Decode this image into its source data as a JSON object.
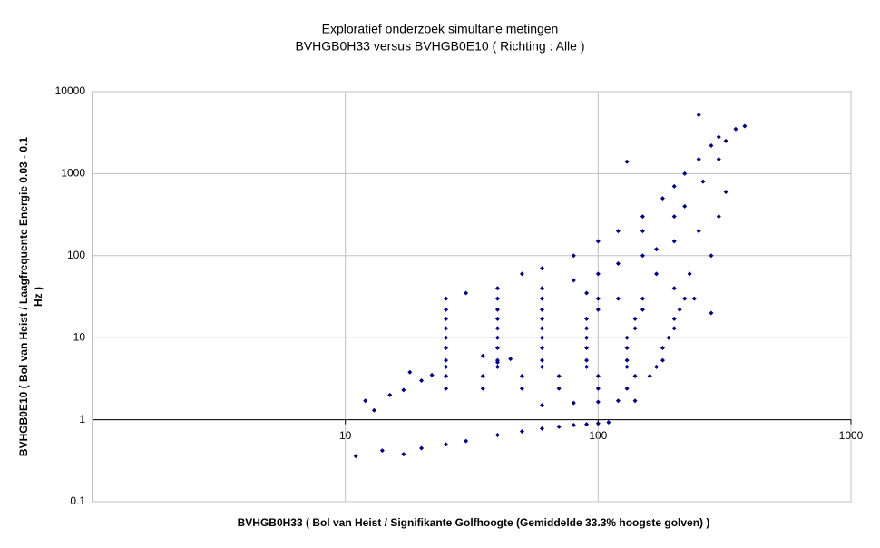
{
  "chart_data": {
    "type": "scatter",
    "title": [
      "Exploratief onderzoek simultane metingen",
      "BVHGB0H33 versus BVHGB0E10 ( Richting : Alle )"
    ],
    "xlabel": "BVHGB0H33 ( Bol van Heist / Signifikante Golfhoogte (Gemiddelde 33.3% hoogste golven) )",
    "ylabel": [
      "BVHGB0E10 ( Bol van Heist / Laagfrequente Energie 0.03 - 0.1",
      "Hz )"
    ],
    "xscale": "log",
    "yscale": "log",
    "grid": true,
    "color": "#000080",
    "xlim": [
      1,
      1000
    ],
    "xticks": [
      10,
      100,
      1000
    ],
    "ylim": [
      0.1,
      10000
    ],
    "yticks": [
      0.1,
      1,
      10,
      100,
      1000,
      10000
    ],
    "x": [
      11,
      14,
      17,
      20,
      25,
      30,
      40,
      50,
      60,
      70,
      80,
      90,
      100,
      110,
      12,
      13,
      15,
      17,
      20,
      22,
      18,
      60,
      80,
      100,
      120,
      140,
      25,
      35,
      50,
      70,
      100,
      130,
      25,
      35,
      50,
      70,
      100,
      140,
      160,
      25,
      40,
      60,
      90,
      130,
      170,
      25,
      40,
      60,
      90,
      130,
      180,
      25,
      40,
      60,
      90,
      130,
      180,
      25,
      40,
      60,
      90,
      130,
      190,
      25,
      40,
      60,
      90,
      140,
      200,
      25,
      40,
      60,
      90,
      140,
      200,
      25,
      40,
      60,
      100,
      150,
      210,
      25,
      40,
      60,
      100,
      150,
      220,
      40,
      50,
      60,
      80,
      100,
      120,
      150,
      180,
      200,
      220,
      250,
      280,
      300,
      250,
      350,
      380,
      130,
      100,
      150,
      200,
      250,
      300,
      320,
      280,
      230,
      200,
      60,
      80,
      120,
      170,
      220,
      260,
      30,
      300,
      320,
      200,
      150,
      170,
      240,
      280,
      120,
      90,
      35,
      40,
      45
    ],
    "values": [
      0.36,
      0.42,
      0.38,
      0.45,
      0.5,
      0.55,
      0.65,
      0.72,
      0.78,
      0.82,
      0.86,
      0.88,
      0.9,
      0.93,
      1.7,
      1.3,
      2,
      2.3,
      3,
      3.5,
      3.8,
      1.5,
      1.6,
      1.65,
      1.7,
      1.7,
      2.4,
      2.4,
      2.4,
      2.4,
      2.4,
      2.4,
      3.4,
      3.4,
      3.4,
      3.4,
      3.4,
      3.4,
      3.4,
      4.4,
      4.4,
      4.4,
      4.4,
      4.4,
      4.4,
      5.3,
      5.3,
      5.3,
      5.3,
      5.3,
      5.3,
      7.5,
      7.5,
      7.5,
      7.5,
      7.5,
      7.5,
      10,
      10,
      10,
      10,
      10,
      10,
      13,
      13,
      13,
      13,
      13,
      13,
      17,
      17,
      17,
      17,
      17,
      17,
      22,
      22,
      22,
      22,
      22,
      22,
      30,
      30,
      30,
      30,
      30,
      30,
      40,
      60,
      70,
      100,
      150,
      200,
      300,
      500,
      700,
      1000,
      1500,
      2200,
      2800,
      5200,
      3500,
      3800,
      1400,
      60,
      100,
      150,
      200,
      300,
      600,
      100,
      60,
      40,
      40,
      50,
      80,
      120,
      400,
      800,
      35,
      1500,
      2500,
      300,
      200,
      60,
      30,
      20,
      30,
      35,
      6,
      5,
      5.5
    ]
  }
}
